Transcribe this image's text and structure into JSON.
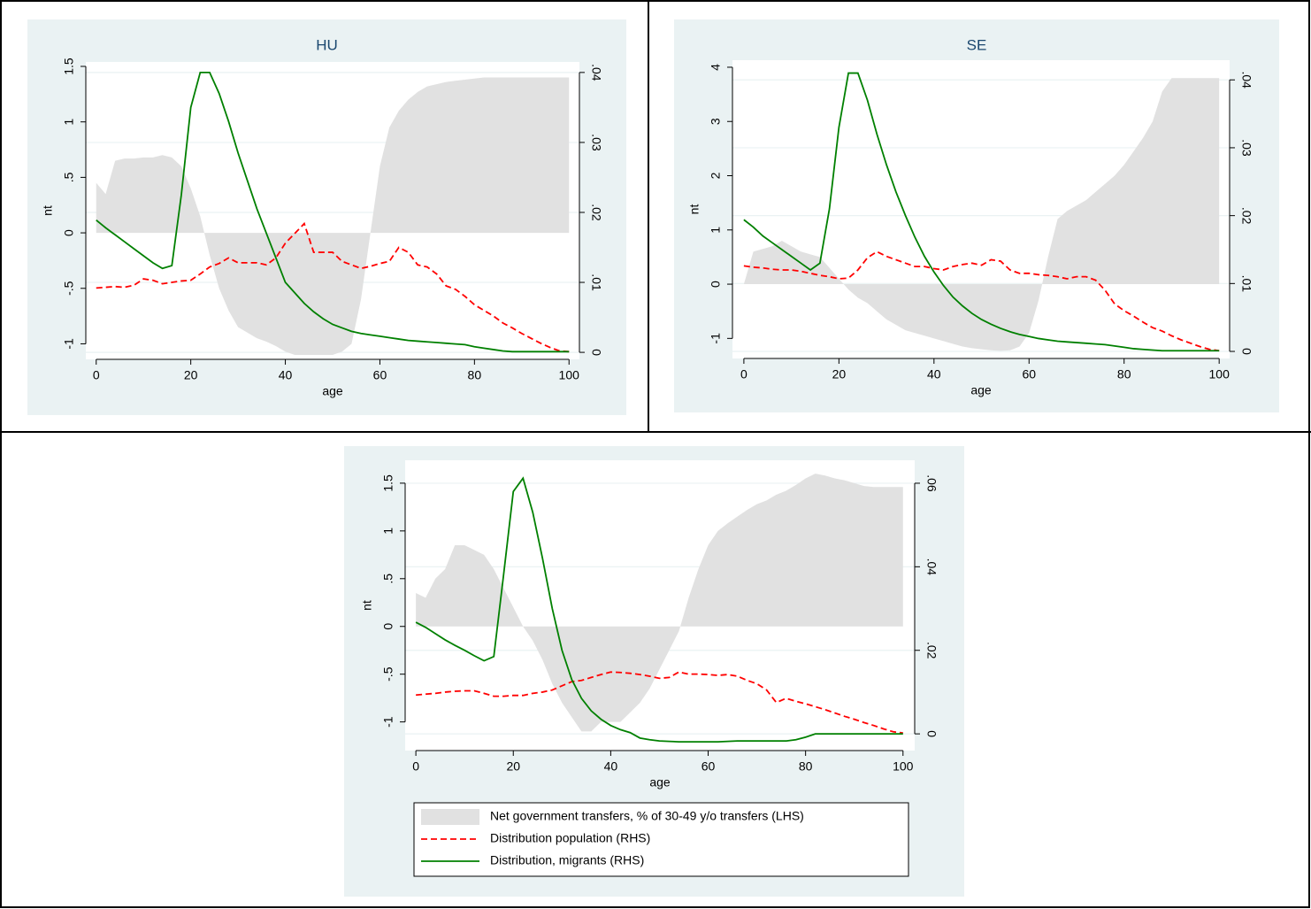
{
  "chart_data": [
    {
      "type": "combo",
      "title": "HU",
      "xlabel": "age",
      "ylabel": "nt",
      "x": [
        0,
        2,
        4,
        6,
        8,
        10,
        12,
        14,
        16,
        18,
        20,
        22,
        24,
        26,
        28,
        30,
        32,
        34,
        36,
        38,
        40,
        42,
        44,
        46,
        48,
        50,
        52,
        54,
        56,
        58,
        60,
        62,
        64,
        66,
        68,
        70,
        72,
        74,
        76,
        78,
        80,
        82,
        84,
        86,
        88,
        90,
        92,
        94,
        96,
        98,
        100
      ],
      "xlim": [
        -2.2,
        102.2
      ],
      "xticks": [
        0,
        20,
        40,
        60,
        80,
        100
      ],
      "ylim": [
        -1.14,
        1.54
      ],
      "yticks": [
        -1,
        {
          "value": -0.5,
          "label": "-.5"
        },
        0,
        {
          "value": 0.5,
          "label": ".5"
        },
        1,
        1.5
      ],
      "y2lim": [
        -0.001,
        0.0415
      ],
      "y2ticks": [
        0,
        {
          "value": 0.01,
          "label": ".01"
        },
        {
          "value": 0.02,
          "label": ".02"
        },
        {
          "value": 0.03,
          "label": ".03"
        },
        {
          "value": 0.04,
          "label": ".04"
        }
      ],
      "grid": true,
      "series": [
        {
          "type": "area",
          "color": "#e1e1e1",
          "values": [
            0.45,
            0.35,
            0.65,
            0.67,
            0.67,
            0.68,
            0.68,
            0.7,
            0.68,
            0.6,
            0.4,
            0.15,
            -0.2,
            -0.5,
            -0.7,
            -0.85,
            -0.9,
            -0.95,
            -0.98,
            -1.02,
            -1.07,
            -1.1,
            -1.1,
            -1.1,
            -1.1,
            -1.1,
            -1.07,
            -1.0,
            -0.6,
            0.0,
            0.6,
            0.95,
            1.1,
            1.2,
            1.27,
            1.32,
            1.34,
            1.36,
            1.37,
            1.38,
            1.39,
            1.4,
            1.4,
            1.4,
            1.4,
            1.4,
            1.4,
            1.4,
            1.4,
            1.4,
            1.4
          ]
        },
        {
          "type": "line",
          "style": "dashed",
          "color": "#ff0000",
          "axis": "y2",
          "values": [
            0.0092,
            0.0093,
            0.0094,
            0.0093,
            0.0096,
            0.0105,
            0.0103,
            0.0098,
            0.01,
            0.0102,
            0.0103,
            0.0112,
            0.0122,
            0.0127,
            0.0135,
            0.0128,
            0.0128,
            0.0128,
            0.0125,
            0.0135,
            0.0156,
            0.017,
            0.0184,
            0.0143,
            0.0143,
            0.0143,
            0.013,
            0.0125,
            0.012,
            0.0123,
            0.0127,
            0.013,
            0.015,
            0.0143,
            0.0125,
            0.0122,
            0.0112,
            0.0095,
            0.009,
            0.008,
            0.0068,
            0.006,
            0.0052,
            0.0042,
            0.0035,
            0.0027,
            0.002,
            0.0013,
            0.0007,
            0.0002,
            0.0001
          ]
        },
        {
          "type": "line",
          "style": "solid",
          "color": "#008000",
          "axis": "y2",
          "values": [
            0.0189,
            0.0178,
            0.0168,
            0.0158,
            0.0148,
            0.0138,
            0.0128,
            0.012,
            0.0124,
            0.0225,
            0.035,
            0.04,
            0.04,
            0.037,
            0.033,
            0.0285,
            0.0245,
            0.0205,
            0.017,
            0.0135,
            0.01,
            0.0085,
            0.007,
            0.0058,
            0.0048,
            0.004,
            0.0035,
            0.003,
            0.0027,
            0.0025,
            0.0023,
            0.0021,
            0.0019,
            0.0017,
            0.0016,
            0.0015,
            0.0014,
            0.0013,
            0.0012,
            0.0011,
            0.0008,
            0.0006,
            0.0004,
            0.0002,
            0.0001,
            0.0001,
            0.0001,
            0.0001,
            0.0001,
            0.0001,
            0.0001
          ]
        }
      ]
    },
    {
      "type": "combo",
      "title": "SE",
      "xlabel": "age",
      "ylabel": "nt",
      "x": [
        0,
        2,
        4,
        6,
        8,
        10,
        12,
        14,
        16,
        18,
        20,
        22,
        24,
        26,
        28,
        30,
        32,
        34,
        36,
        38,
        40,
        42,
        44,
        46,
        48,
        50,
        52,
        54,
        56,
        58,
        60,
        62,
        64,
        66,
        68,
        70,
        72,
        74,
        76,
        78,
        80,
        82,
        84,
        86,
        88,
        90,
        92,
        94,
        96,
        98,
        100
      ],
      "xlim": [
        -2.4,
        102.2
      ],
      "xticks": [
        0,
        20,
        40,
        60,
        80,
        100
      ],
      "ylim": [
        -1.37,
        4.13
      ],
      "yticks": [
        -1,
        0,
        1,
        2,
        3,
        4
      ],
      "y2lim": [
        -0.00104,
        0.0429
      ],
      "y2ticks": [
        0,
        {
          "value": 0.01,
          "label": ".01"
        },
        {
          "value": 0.02,
          "label": ".02"
        },
        {
          "value": 0.03,
          "label": ".03"
        },
        {
          "value": 0.04,
          "label": ".04"
        }
      ],
      "grid": true,
      "series": [
        {
          "type": "area",
          "color": "#e1e1e1",
          "values": [
            0.0,
            0.6,
            0.65,
            0.7,
            0.8,
            0.7,
            0.6,
            0.55,
            0.5,
            0.3,
            0.1,
            -0.1,
            -0.25,
            -0.35,
            -0.5,
            -0.65,
            -0.75,
            -0.85,
            -0.9,
            -0.95,
            -1.0,
            -1.05,
            -1.1,
            -1.15,
            -1.18,
            -1.2,
            -1.22,
            -1.23,
            -1.22,
            -1.15,
            -0.9,
            -0.3,
            0.5,
            1.2,
            1.35,
            1.45,
            1.55,
            1.7,
            1.85,
            2.0,
            2.2,
            2.45,
            2.7,
            3.0,
            3.55,
            3.8,
            3.8,
            3.8,
            3.8,
            3.8,
            3.8
          ]
        },
        {
          "type": "line",
          "style": "dashed",
          "color": "#ff0000",
          "axis": "y2",
          "values": [
            0.0126,
            0.0124,
            0.0123,
            0.0121,
            0.012,
            0.012,
            0.0118,
            0.0115,
            0.0112,
            0.011,
            0.0107,
            0.0108,
            0.012,
            0.0138,
            0.0147,
            0.014,
            0.0135,
            0.013,
            0.0125,
            0.0125,
            0.0122,
            0.012,
            0.0125,
            0.0128,
            0.013,
            0.0127,
            0.0135,
            0.0133,
            0.012,
            0.0115,
            0.0115,
            0.0113,
            0.0112,
            0.011,
            0.0107,
            0.011,
            0.011,
            0.0105,
            0.009,
            0.007,
            0.006,
            0.0052,
            0.0043,
            0.0035,
            0.003,
            0.0023,
            0.0017,
            0.0012,
            0.0007,
            0.0003,
            0.0001
          ]
        },
        {
          "type": "line",
          "style": "solid",
          "color": "#008000",
          "axis": "y2",
          "values": [
            0.0194,
            0.0183,
            0.017,
            0.016,
            0.015,
            0.014,
            0.013,
            0.012,
            0.013,
            0.021,
            0.033,
            0.041,
            0.041,
            0.037,
            0.032,
            0.0275,
            0.0235,
            0.02,
            0.0168,
            0.014,
            0.0117,
            0.0097,
            0.008,
            0.0067,
            0.0056,
            0.0047,
            0.004,
            0.0034,
            0.0029,
            0.0025,
            0.0022,
            0.0019,
            0.0017,
            0.0015,
            0.0014,
            0.0013,
            0.0012,
            0.0011,
            0.001,
            0.0008,
            0.0006,
            0.0004,
            0.0003,
            0.0002,
            0.0001,
            0.0001,
            0.0001,
            0.0001,
            0.0001,
            0.0001,
            0.0001
          ]
        }
      ]
    },
    {
      "type": "combo",
      "xlabel": "age",
      "ylabel": "nt",
      "x": [
        0,
        2,
        4,
        6,
        8,
        10,
        12,
        14,
        16,
        18,
        20,
        22,
        24,
        26,
        28,
        30,
        32,
        34,
        36,
        38,
        40,
        42,
        44,
        46,
        48,
        50,
        52,
        54,
        56,
        58,
        60,
        62,
        64,
        66,
        68,
        70,
        72,
        74,
        76,
        78,
        80,
        82,
        84,
        86,
        88,
        90,
        92,
        94,
        96,
        98,
        100
      ],
      "xlim": [
        -2.2,
        102.4
      ],
      "xticks": [
        0,
        20,
        40,
        60,
        80,
        100
      ],
      "ylim": [
        -1.3,
        1.74
      ],
      "yticks": [
        -1,
        {
          "value": -0.5,
          "label": "-.5"
        },
        0,
        {
          "value": 0.5,
          "label": ".5"
        },
        1,
        1.5
      ],
      "y2lim": [
        -0.004,
        0.0655
      ],
      "y2ticks": [
        0,
        {
          "value": 0.02,
          "label": ".02"
        },
        {
          "value": 0.04,
          "label": ".04"
        },
        {
          "value": 0.06,
          "label": ".06"
        }
      ],
      "grid": true,
      "legend": "bottom",
      "series": [
        {
          "name": "Net government transfers, % of 30-49 y/o transfers (LHS)",
          "type": "area",
          "color": "#e1e1e1",
          "values": [
            0.35,
            0.3,
            0.5,
            0.6,
            0.85,
            0.85,
            0.8,
            0.75,
            0.6,
            0.4,
            0.2,
            0.0,
            -0.15,
            -0.35,
            -0.6,
            -0.8,
            -0.95,
            -1.1,
            -1.1,
            -1.0,
            -1.0,
            -1.0,
            -0.9,
            -0.8,
            -0.65,
            -0.45,
            -0.25,
            -0.05,
            0.3,
            0.6,
            0.85,
            1.0,
            1.08,
            1.15,
            1.22,
            1.28,
            1.32,
            1.38,
            1.42,
            1.48,
            1.55,
            1.6,
            1.58,
            1.55,
            1.53,
            1.5,
            1.47,
            1.46,
            1.46,
            1.46,
            1.46
          ]
        },
        {
          "name": "Distribution population (RHS)",
          "type": "line",
          "style": "dashed",
          "color": "#ff0000",
          "axis": "y2",
          "values": [
            0.0093,
            0.0095,
            0.0097,
            0.01,
            0.0102,
            0.0103,
            0.0103,
            0.0097,
            0.009,
            0.009,
            0.0092,
            0.0092,
            0.0097,
            0.01,
            0.0105,
            0.0115,
            0.0125,
            0.0128,
            0.0135,
            0.0142,
            0.0148,
            0.0147,
            0.0145,
            0.0142,
            0.0138,
            0.0133,
            0.0135,
            0.0148,
            0.0143,
            0.0143,
            0.0142,
            0.014,
            0.0142,
            0.0138,
            0.0128,
            0.012,
            0.0105,
            0.0075,
            0.0085,
            0.0078,
            0.0072,
            0.0065,
            0.0058,
            0.005,
            0.0042,
            0.0035,
            0.0027,
            0.002,
            0.0012,
            0.0005,
            0.0002
          ]
        },
        {
          "name": "Distribution, migrants (RHS)",
          "type": "line",
          "style": "solid",
          "color": "#008000",
          "axis": "y2",
          "values": [
            0.0267,
            0.0255,
            0.024,
            0.0225,
            0.0212,
            0.02,
            0.0187,
            0.0175,
            0.0185,
            0.038,
            0.058,
            0.0612,
            0.053,
            0.042,
            0.03,
            0.02,
            0.013,
            0.0085,
            0.0055,
            0.0035,
            0.002,
            0.001,
            0.0003,
            -0.001,
            -0.0014,
            -0.0017,
            -0.0018,
            -0.0019,
            -0.0019,
            -0.0019,
            -0.0019,
            -0.0019,
            -0.0018,
            -0.0017,
            -0.0017,
            -0.0017,
            -0.0017,
            -0.0017,
            -0.0017,
            -0.0014,
            -0.0008,
            0,
            0,
            0,
            0,
            0,
            0,
            0,
            0,
            0,
            0
          ]
        }
      ]
    }
  ]
}
